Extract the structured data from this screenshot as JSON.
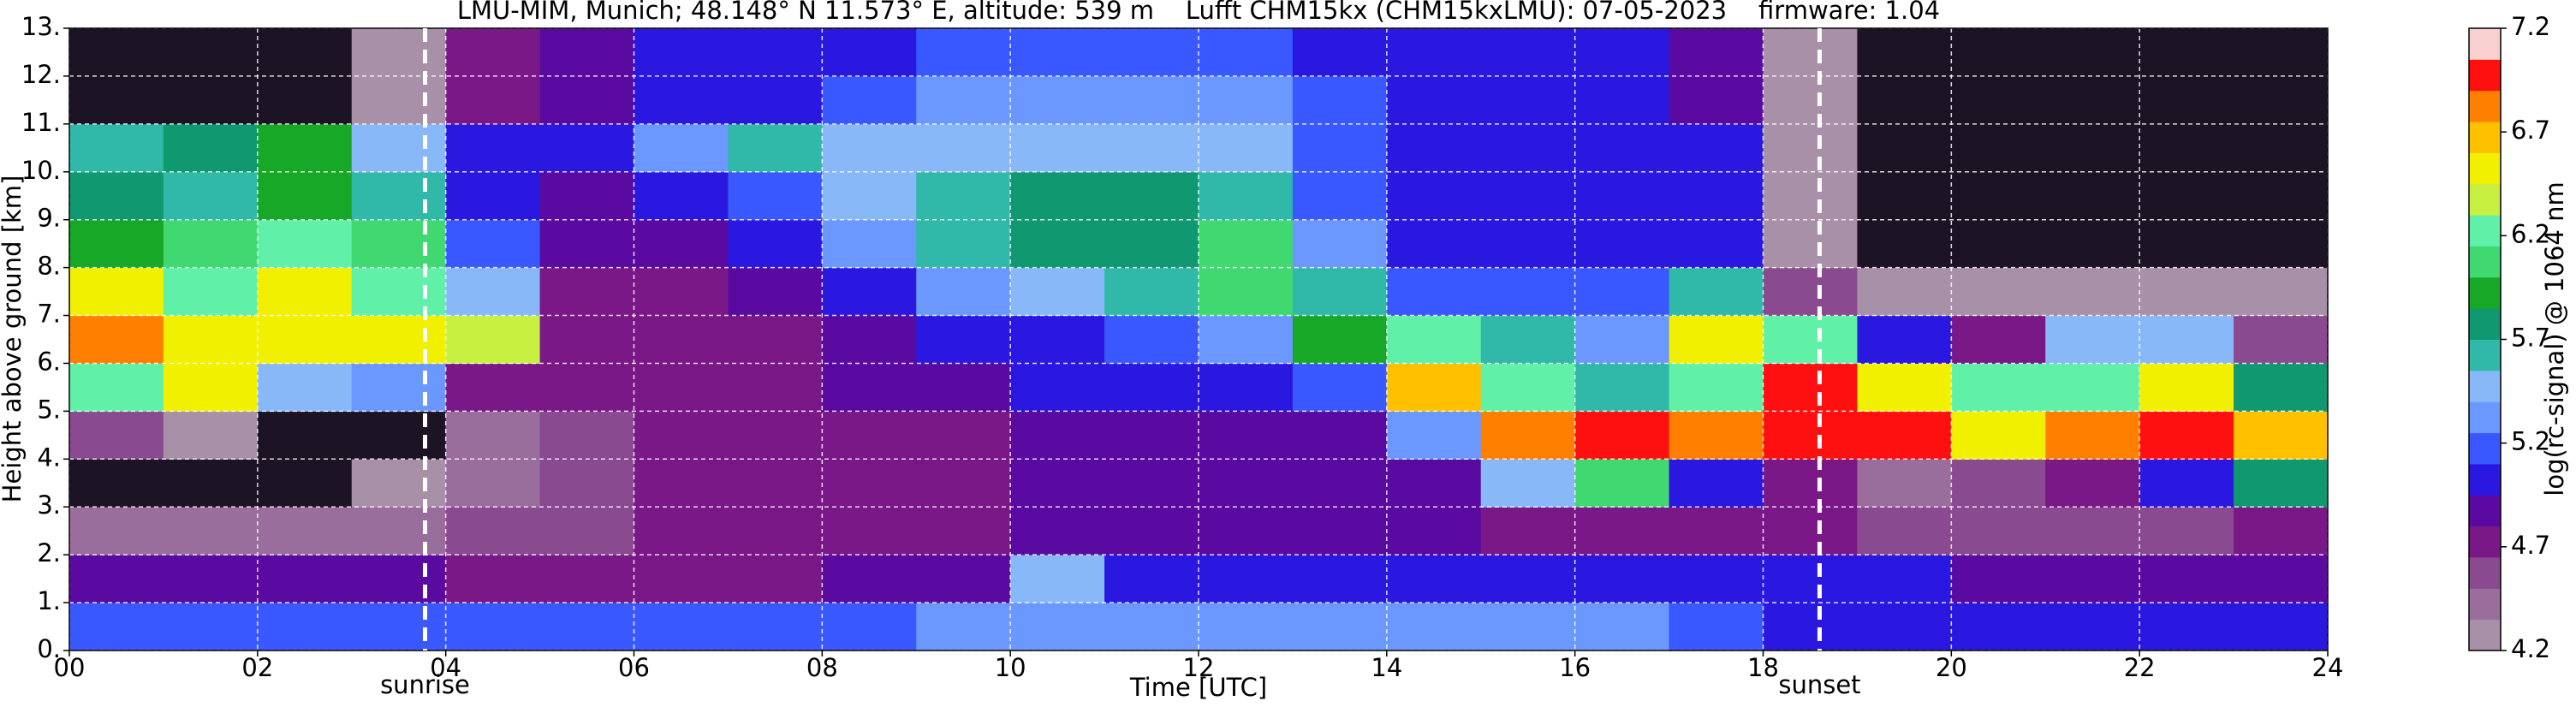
{
  "chart_data": {
    "type": "heatmap",
    "title": "LMU-MIM, Munich; 48.148° N 11.573° E, altitude: 539 m    Lufft CHM15kx (CHM15kxLMU): 07-05-2023    firmware: 1.04",
    "x_label": "Time [UTC]",
    "y_label": "Height above ground [km]",
    "colorbar_label": "log(rc-signal) @ 1064 nm",
    "xlim": [
      0,
      24
    ],
    "xticks": [
      {
        "value": 0,
        "label": "00"
      },
      {
        "value": 2,
        "label": "02"
      },
      {
        "value": 4,
        "label": "04"
      },
      {
        "value": 6,
        "label": "06"
      },
      {
        "value": 8,
        "label": "08"
      },
      10,
      12,
      14,
      16,
      18,
      20,
      22,
      24
    ],
    "ylim": [
      0,
      13
    ],
    "yticks": [
      {
        "value": 0,
        "label": "0."
      },
      {
        "value": 1,
        "label": "1."
      },
      {
        "value": 2,
        "label": "2."
      },
      {
        "value": 3,
        "label": "3."
      },
      {
        "value": 4,
        "label": "4."
      },
      {
        "value": 5,
        "label": "5."
      },
      {
        "value": 6,
        "label": "6."
      },
      {
        "value": 7,
        "label": "7."
      },
      {
        "value": 8,
        "label": "8."
      },
      {
        "value": 9,
        "label": "9."
      },
      {
        "value": 10,
        "label": "10."
      },
      {
        "value": 11,
        "label": "11."
      },
      {
        "value": 12,
        "label": "12."
      },
      {
        "value": 13,
        "label": "13."
      }
    ],
    "grid": true,
    "clim": [
      4.2,
      7.2
    ],
    "cticks": [
      4.2,
      4.7,
      5.2,
      5.7,
      6.2,
      6.7,
      7.2
    ],
    "colorscale": [
      "#a890a8",
      "#9a6e9c",
      "#8a4a90",
      "#7a1888",
      "#5a0aa0",
      "#2a18e0",
      "#3a58ff",
      "#6a98ff",
      "#88b8f8",
      "#30b8a8",
      "#109870",
      "#18a828",
      "#40d870",
      "#60f0a8",
      "#c8f040",
      "#f0f000",
      "#ffc000",
      "#ff8000",
      "#ff1010",
      "#f8d0d0"
    ],
    "under_color": "#1c1424",
    "z": [
      [
        5.2,
        5.2,
        5.2,
        5.2,
        5.2,
        5.2,
        5.2,
        5.2,
        5.2,
        5.3,
        5.3,
        5.3,
        5.3,
        5.3,
        5.3,
        5.3,
        5.3,
        5.2,
        5.1,
        5.0,
        5.1,
        5.1,
        5.1,
        5.1
      ],
      [
        4.9,
        4.9,
        4.9,
        4.9,
        4.8,
        4.8,
        4.8,
        4.8,
        4.9,
        4.9,
        5.4,
        5.0,
        5.0,
        5.0,
        5.0,
        5.0,
        5.0,
        5.1,
        5.0,
        5.0,
        4.9,
        4.9,
        4.9,
        4.9
      ],
      [
        4.4,
        4.4,
        4.4,
        4.4,
        4.6,
        4.6,
        4.7,
        4.7,
        4.7,
        4.8,
        4.9,
        4.9,
        4.9,
        4.9,
        4.9,
        4.8,
        4.8,
        4.7,
        4.7,
        4.6,
        4.6,
        4.6,
        4.6,
        4.7
      ],
      [
        4.1,
        4.1,
        4.1,
        4.2,
        4.5,
        4.6,
        4.7,
        4.7,
        4.8,
        4.8,
        4.9,
        4.9,
        4.9,
        4.9,
        4.9,
        5.5,
        6.0,
        5.0,
        4.8,
        4.5,
        4.6,
        4.7,
        5.0,
        5.8
      ],
      [
        4.6,
        4.2,
        4.1,
        4.1,
        4.5,
        4.6,
        4.7,
        4.7,
        4.8,
        4.8,
        4.9,
        4.9,
        4.9,
        4.9,
        5.3,
        6.8,
        7.0,
        6.8,
        7.0,
        6.9,
        6.5,
        6.8,
        7.0,
        6.7
      ],
      [
        6.3,
        6.6,
        5.5,
        5.3,
        4.8,
        4.8,
        4.8,
        4.8,
        4.9,
        4.9,
        5.0,
        5.0,
        5.0,
        5.2,
        6.7,
        6.2,
        5.6,
        6.3,
        7.0,
        6.6,
        6.2,
        6.3,
        6.6,
        5.8
      ],
      [
        6.8,
        6.6,
        6.5,
        6.6,
        6.4,
        4.8,
        4.8,
        4.8,
        4.9,
        5.0,
        5.1,
        5.2,
        5.3,
        5.9,
        6.3,
        5.6,
        5.3,
        6.6,
        6.2,
        5.0,
        4.7,
        5.4,
        5.5,
        4.6
      ],
      [
        6.5,
        6.2,
        6.5,
        6.3,
        5.4,
        4.8,
        4.8,
        4.9,
        5.0,
        5.3,
        5.4,
        5.6,
        6.1,
        5.6,
        5.2,
        5.2,
        5.2,
        5.6,
        4.6,
        4.3,
        4.2,
        4.2,
        4.2,
        4.2
      ],
      [
        5.9,
        6.0,
        6.3,
        6.0,
        5.2,
        4.9,
        4.9,
        5.1,
        5.3,
        5.6,
        5.7,
        5.8,
        6.0,
        5.3,
        5.1,
        5.1,
        5.1,
        5.0,
        4.2,
        4.0,
        4.0,
        4.0,
        4.0,
        4.0
      ],
      [
        5.8,
        5.6,
        5.9,
        5.6,
        5.0,
        4.9,
        5.0,
        5.2,
        5.4,
        5.6,
        5.8,
        5.8,
        5.6,
        5.2,
        5.1,
        5.1,
        5.1,
        5.0,
        4.2,
        4.0,
        4.0,
        4.0,
        4.0,
        4.0
      ],
      [
        5.6,
        5.8,
        5.9,
        5.4,
        5.0,
        5.1,
        5.3,
        5.6,
        5.5,
        5.5,
        5.5,
        5.5,
        5.4,
        5.2,
        5.1,
        5.1,
        5.1,
        5.0,
        4.2,
        4.0,
        4.0,
        4.0,
        4.0,
        4.0
      ],
      [
        4.1,
        4.1,
        4.1,
        4.2,
        4.8,
        4.9,
        5.0,
        5.1,
        5.2,
        5.3,
        5.3,
        5.3,
        5.3,
        5.2,
        5.1,
        5.0,
        5.0,
        4.9,
        4.2,
        4.0,
        4.0,
        4.0,
        4.0,
        4.0
      ],
      [
        4.1,
        4.1,
        4.1,
        4.2,
        4.8,
        4.9,
        5.0,
        5.0,
        5.1,
        5.2,
        5.2,
        5.2,
        5.2,
        5.1,
        5.0,
        5.0,
        5.0,
        4.9,
        4.2,
        4.0,
        4.0,
        4.0,
        4.0,
        4.0
      ]
    ],
    "annotations": [
      {
        "text": "sunrise",
        "x": 3.78
      },
      {
        "text": "sunset",
        "x": 18.6
      }
    ]
  }
}
